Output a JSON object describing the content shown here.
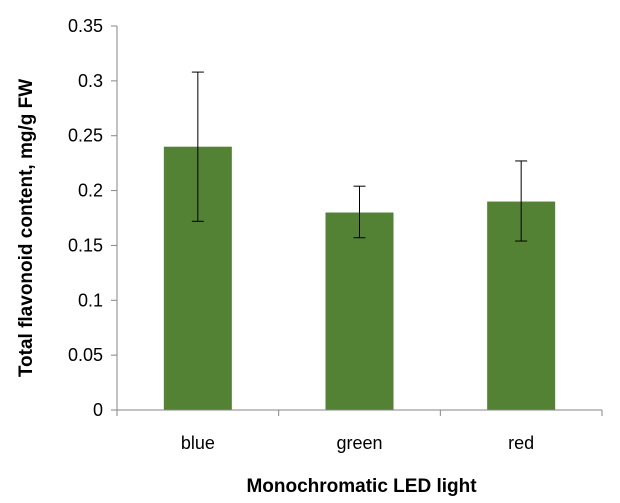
{
  "chart_data": {
    "type": "bar",
    "categories": [
      "blue",
      "green",
      "red"
    ],
    "values": [
      0.24,
      0.18,
      0.19
    ],
    "error_low": [
      0.172,
      0.157,
      0.154
    ],
    "error_high": [
      0.308,
      0.204,
      0.227
    ],
    "xlabel": "Monochromatic LED light",
    "ylabel": "Total flavonoid content, mg/g FW",
    "ylim": [
      0,
      0.35
    ],
    "yticks": [
      "0",
      "0.05",
      "0.1",
      "0.15",
      "0.2",
      "0.25",
      "0.3",
      "0.35"
    ],
    "grid": false,
    "legend": "none",
    "colors": {
      "bar": "#548235",
      "axis": "#868686",
      "error_bar": "#000000"
    }
  }
}
